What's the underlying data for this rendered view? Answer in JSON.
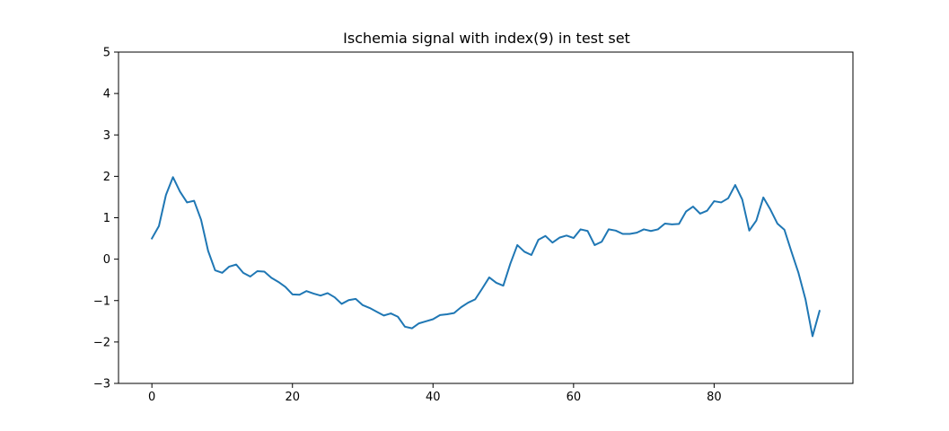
{
  "chart_data": {
    "type": "line",
    "title": "Ischemia signal with index(9) in test set",
    "xlabel": "",
    "ylabel": "",
    "xlim": [
      -4.75,
      99.75
    ],
    "ylim": [
      -3,
      5
    ],
    "xticks": [
      0,
      20,
      40,
      60,
      80
    ],
    "yticks": [
      -3,
      -2,
      -1,
      0,
      1,
      2,
      3,
      4,
      5
    ],
    "grid": false,
    "legend": false,
    "series": [
      {
        "color": "#1f77b4",
        "x": [
          0,
          1,
          2,
          3,
          4,
          5,
          6,
          7,
          8,
          9,
          10,
          11,
          12,
          13,
          14,
          15,
          16,
          17,
          18,
          19,
          20,
          21,
          22,
          23,
          24,
          25,
          26,
          27,
          28,
          29,
          30,
          31,
          32,
          33,
          34,
          35,
          36,
          37,
          38,
          39,
          40,
          41,
          42,
          43,
          44,
          45,
          46,
          47,
          48,
          49,
          50,
          51,
          52,
          53,
          54,
          55,
          56,
          57,
          58,
          59,
          60,
          61,
          62,
          63,
          64,
          65,
          66,
          67,
          68,
          69,
          70,
          71,
          72,
          73,
          74,
          75,
          76,
          77,
          78,
          79,
          80,
          81,
          82,
          83,
          84,
          85,
          86,
          87,
          88,
          89,
          90,
          91,
          92,
          93,
          94,
          95
        ],
        "y": [
          0.5,
          0.8,
          1.55,
          1.98,
          1.63,
          1.37,
          1.41,
          0.95,
          0.2,
          -0.27,
          -0.33,
          -0.18,
          -0.13,
          -0.33,
          -0.42,
          -0.29,
          -0.3,
          -0.45,
          -0.55,
          -0.67,
          -0.85,
          -0.86,
          -0.77,
          -0.83,
          -0.88,
          -0.82,
          -0.92,
          -1.08,
          -0.99,
          -0.96,
          -1.11,
          -1.18,
          -1.27,
          -1.36,
          -1.31,
          -1.39,
          -1.63,
          -1.67,
          -1.55,
          -1.5,
          -1.45,
          -1.35,
          -1.33,
          -1.3,
          -1.16,
          -1.05,
          -0.97,
          -0.71,
          -0.44,
          -0.57,
          -0.64,
          -0.11,
          0.34,
          0.18,
          0.1,
          0.47,
          0.56,
          0.4,
          0.52,
          0.57,
          0.51,
          0.72,
          0.68,
          0.34,
          0.42,
          0.72,
          0.69,
          0.61,
          0.61,
          0.64,
          0.72,
          0.68,
          0.72,
          0.86,
          0.84,
          0.85,
          1.15,
          1.27,
          1.1,
          1.17,
          1.4,
          1.37,
          1.47,
          1.79,
          1.44,
          0.69,
          0.93,
          1.49,
          1.2,
          0.86,
          0.71,
          0.18,
          -0.33,
          -0.97,
          -1.86,
          -1.25
        ]
      }
    ]
  }
}
